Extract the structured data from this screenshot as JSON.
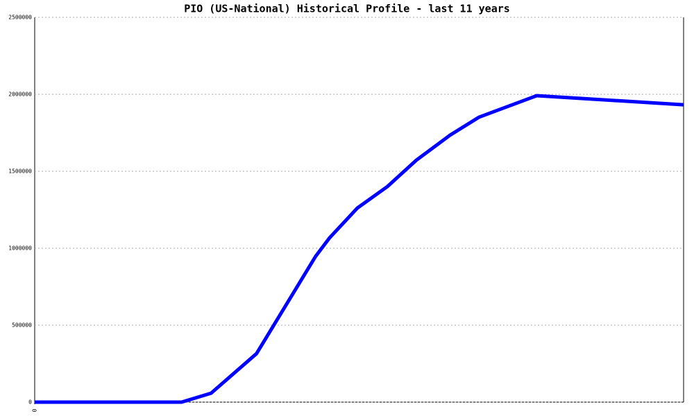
{
  "chart_data": {
    "type": "line",
    "title": "PIO (US-National) Historical Profile - last 11 years",
    "x": [
      0,
      2.49,
      2.99,
      3.76,
      4.76,
      5.0,
      5.47,
      5.98,
      6.47,
      7.04,
      7.53,
      8.51,
      11
    ],
    "series": [
      {
        "color": "#0000ff",
        "values": [
          0,
          0,
          58000,
          315000,
          946000,
          1068000,
          1261000,
          1401000,
          1572000,
          1734000,
          1851000,
          1991000,
          1932000
        ]
      }
    ],
    "xlim": [
      0,
      11
    ],
    "xticks": [
      0
    ],
    "ylim": [
      0,
      2500000
    ],
    "yticks": [
      0,
      500000,
      1000000,
      1500000,
      2000000,
      2500000
    ],
    "grid": true
  }
}
